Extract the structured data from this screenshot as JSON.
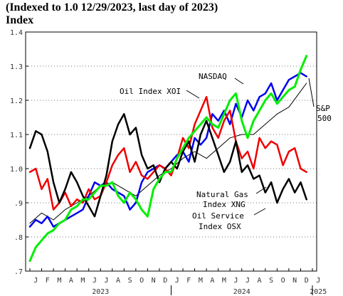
{
  "header": {
    "title": "(Indexed to 1.0 12/29/2023, last day of 2023)",
    "subtitle": "Index"
  },
  "chart_data": {
    "type": "line",
    "title": "(Indexed to 1.0 12/29/2023, last day of 2023)",
    "ylabel": "Index",
    "xlabel": "",
    "ylim": [
      0.7,
      1.4
    ],
    "yticks": [
      0.7,
      0.8,
      0.9,
      1.0,
      1.1,
      1.2,
      1.3,
      1.4
    ],
    "ytick_labels": [
      ".7",
      ".8",
      ".9",
      "1.0",
      "1.1",
      "1.2",
      "1.3",
      "1.4"
    ],
    "x_months": [
      "J",
      "F",
      "M",
      "A",
      "M",
      "J",
      "J",
      "A",
      "S",
      "O",
      "N",
      "D",
      "J",
      "F",
      "M",
      "A",
      "M",
      "J",
      "J",
      "A",
      "S",
      "O",
      "N",
      "D",
      "J"
    ],
    "x_years": [
      "2023",
      "2024",
      "2025"
    ],
    "grid": "horizontal dotted",
    "series": [
      {
        "name": "NASDAQ",
        "color": "#00ee00",
        "x": [
          0,
          0.5,
          1,
          1.5,
          2,
          2.5,
          3,
          3.5,
          4,
          4.5,
          5,
          5.5,
          6,
          6.5,
          7,
          7.5,
          8,
          8.5,
          9,
          9.5,
          10,
          10.5,
          11,
          11.5,
          12,
          12.5,
          13,
          13.5,
          14,
          14.5,
          15,
          15.5,
          16,
          16.5,
          17,
          17.5,
          18,
          18.5,
          19,
          19.5,
          20,
          20.5,
          21,
          21.5,
          22,
          22.5,
          23,
          23.5
        ],
        "values": [
          0.73,
          0.77,
          0.79,
          0.81,
          0.82,
          0.84,
          0.85,
          0.88,
          0.89,
          0.91,
          0.91,
          0.93,
          0.95,
          0.95,
          0.96,
          0.92,
          0.9,
          0.93,
          0.91,
          0.88,
          0.86,
          0.94,
          0.97,
          0.99,
          0.99,
          1.03,
          1.06,
          1.09,
          1.11,
          1.13,
          1.15,
          1.13,
          1.12,
          1.16,
          1.2,
          1.22,
          1.14,
          1.09,
          1.14,
          1.17,
          1.2,
          1.22,
          1.19,
          1.21,
          1.23,
          1.24,
          1.29,
          1.33
        ]
      },
      {
        "name": "S&P 500",
        "color": "#000000",
        "x": [
          0,
          1,
          2,
          3,
          4,
          5,
          6,
          7,
          8,
          9,
          10,
          11,
          12,
          13,
          14,
          15,
          16,
          17,
          18,
          19,
          20,
          21,
          22,
          23.5
        ],
        "values": [
          0.84,
          0.87,
          0.85,
          0.88,
          0.9,
          0.92,
          0.95,
          0.96,
          0.94,
          0.92,
          0.95,
          0.98,
          1.0,
          1.03,
          1.05,
          1.03,
          1.06,
          1.09,
          1.1,
          1.1,
          1.13,
          1.16,
          1.18,
          1.25
        ]
      },
      {
        "name": "Oil Index XOI",
        "color": "#ee0000",
        "x": [
          0,
          0.5,
          1,
          1.5,
          2,
          2.5,
          3,
          3.5,
          4,
          4.5,
          5,
          5.5,
          6,
          6.5,
          7,
          7.5,
          8,
          8.5,
          9,
          9.5,
          10,
          10.5,
          11,
          11.5,
          12,
          12.5,
          13,
          13.5,
          14,
          14.5,
          15,
          15.5,
          16,
          16.5,
          17,
          17.5,
          18,
          18.5,
          19,
          19.5,
          20,
          20.5,
          21,
          21.5,
          22,
          22.5,
          23,
          23.5
        ],
        "values": [
          0.99,
          1.0,
          0.94,
          0.97,
          0.88,
          0.9,
          0.93,
          0.89,
          0.91,
          0.9,
          0.94,
          0.91,
          0.92,
          0.96,
          1.01,
          1.04,
          1.06,
          0.99,
          1.02,
          0.98,
          0.97,
          0.99,
          1.01,
          1.0,
          0.98,
          1.03,
          1.09,
          1.06,
          1.13,
          1.17,
          1.21,
          1.12,
          1.09,
          1.14,
          1.17,
          1.08,
          1.03,
          1.05,
          1.0,
          1.09,
          1.06,
          1.08,
          1.07,
          1.01,
          1.05,
          1.06,
          1.0,
          0.99
        ]
      },
      {
        "name": "Natural Gas Index XNG",
        "color": "#000000",
        "x": [
          0,
          0.5,
          1,
          1.5,
          2,
          2.5,
          3,
          3.5,
          4,
          4.5,
          5,
          5.5,
          6,
          6.5,
          7,
          7.5,
          8,
          8.5,
          9,
          9.5,
          10,
          10.5,
          11,
          11.5,
          12,
          12.5,
          13,
          13.5,
          14,
          14.5,
          15,
          15.5,
          16,
          16.5,
          17,
          17.5,
          18,
          18.5,
          19,
          19.5,
          20,
          20.5,
          21,
          21.5,
          22,
          22.5,
          23,
          23.5
        ],
        "values": [
          1.06,
          1.11,
          1.1,
          1.05,
          0.96,
          0.9,
          0.94,
          0.99,
          0.96,
          0.92,
          0.89,
          0.86,
          0.92,
          0.98,
          1.08,
          1.13,
          1.16,
          1.1,
          1.12,
          1.04,
          1.0,
          1.01,
          0.96,
          1.0,
          1.02,
          1.0,
          1.05,
          1.08,
          1.02,
          1.1,
          1.14,
          1.09,
          1.04,
          0.99,
          1.02,
          1.08,
          0.99,
          1.01,
          0.97,
          0.98,
          0.93,
          0.96,
          0.9,
          0.94,
          0.97,
          0.93,
          0.96,
          0.91
        ]
      },
      {
        "name": "Oil Service Index OSX",
        "color": "#0000ee",
        "x": [
          0,
          0.5,
          1,
          1.5,
          2,
          2.5,
          3,
          3.5,
          4,
          4.5,
          5,
          5.5,
          6,
          6.5,
          7,
          7.5,
          8,
          8.5,
          9,
          9.5,
          10,
          10.5,
          11,
          11.5,
          12,
          12.5,
          13,
          13.5,
          14,
          14.5,
          15,
          15.5,
          16,
          16.5,
          17,
          17.5,
          18,
          18.5,
          19,
          19.5,
          20,
          20.5,
          21,
          21.5,
          22,
          22.5,
          23,
          23.5
        ],
        "values": [
          0.83,
          0.85,
          0.84,
          0.86,
          0.83,
          0.84,
          0.85,
          0.86,
          0.87,
          0.88,
          0.92,
          0.96,
          0.95,
          0.96,
          0.94,
          0.93,
          0.92,
          0.88,
          0.9,
          0.96,
          0.99,
          1.0,
          1.01,
          1.0,
          1.02,
          1.04,
          1.05,
          1.02,
          1.09,
          1.07,
          1.09,
          1.16,
          1.14,
          1.17,
          1.13,
          1.19,
          1.15,
          1.2,
          1.17,
          1.21,
          1.22,
          1.25,
          1.2,
          1.23,
          1.26,
          1.27,
          1.28,
          1.27
        ]
      }
    ],
    "annotations": {
      "nasdaq": "NASDAQ",
      "xoi": "Oil Index XOI",
      "sp_line1": "S&P",
      "sp_line2": "500",
      "xng_line1": "Natural Gas",
      "xng_line2": "Index XNG",
      "osx_line1": "Oil Service",
      "osx_line2": "Index OSX"
    }
  }
}
